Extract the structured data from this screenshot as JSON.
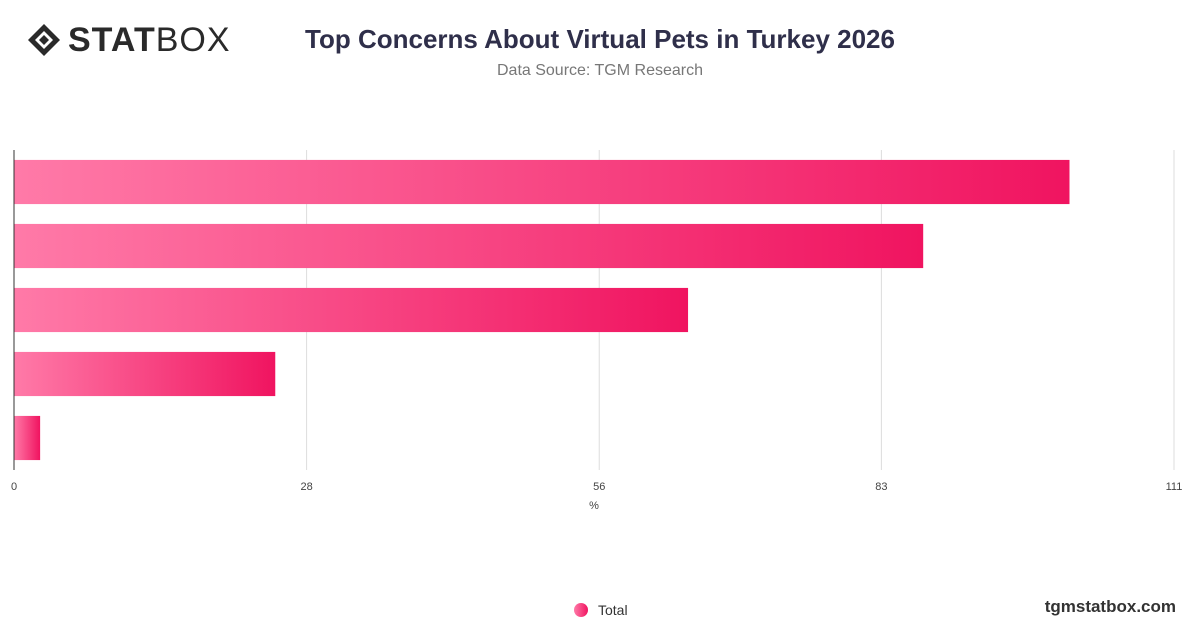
{
  "brand": {
    "logo_bold": "STAT",
    "logo_light": "BOX",
    "site": "tgmstatbox.com"
  },
  "header": {
    "title": "Top Concerns About Virtual Pets in Turkey 2026",
    "subtitle": "Data Source: TGM Research"
  },
  "colors": {
    "bar_start": "#ff7aa8",
    "bar_end": "#f01460",
    "grid": "#dddddd",
    "axis": "#333333"
  },
  "chart_data": {
    "type": "bar",
    "orientation": "horizontal",
    "categories": [
      "",
      "",
      "",
      "",
      ""
    ],
    "series": [
      {
        "name": "Total",
        "values": [
          101,
          87,
          64.5,
          25,
          2.5
        ]
      }
    ],
    "xlabel": "%",
    "xlim": [
      0,
      111
    ],
    "x_ticks": [
      "0",
      "28",
      "56",
      "83",
      "111"
    ],
    "x_tick_values": [
      0,
      28,
      56,
      83,
      111
    ],
    "grid": true,
    "legend_position": "bottom-center"
  }
}
